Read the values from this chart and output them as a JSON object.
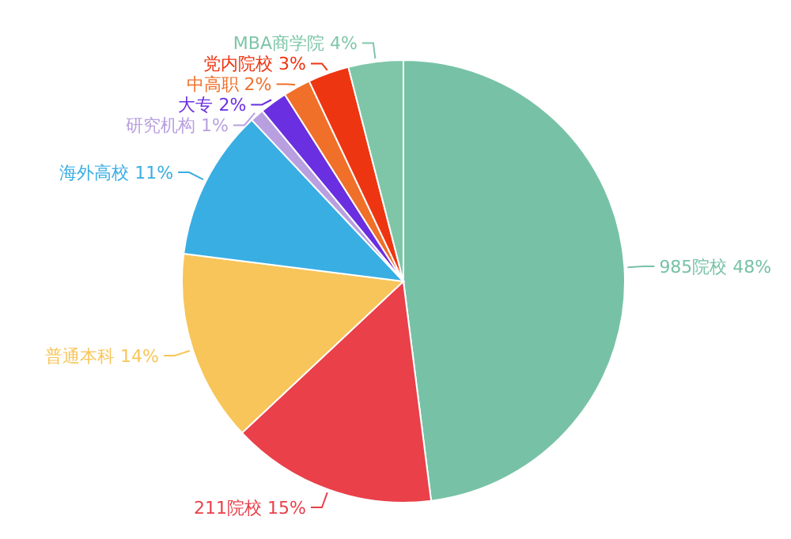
{
  "chart_data": {
    "type": "pie",
    "categories": [
      "985院校",
      "211院校",
      "普通本科",
      "海外高校",
      "研究机构",
      "大专",
      "中高职",
      "党内院校",
      "MBA商学院"
    ],
    "values": [
      48,
      15,
      14,
      11,
      1,
      2,
      2,
      3,
      4
    ],
    "value_labels": [
      "48%",
      "15%",
      "14%",
      "11%",
      "1%",
      "2%",
      "2%",
      "3%",
      "4%"
    ],
    "colors": [
      "#77c2a6",
      "#e9404a",
      "#f8c55a",
      "#39aee3",
      "#b8a0e0",
      "#6a2fe0",
      "#f0702a",
      "#ee3512",
      "#7fc6a8"
    ],
    "data_labels": true
  }
}
